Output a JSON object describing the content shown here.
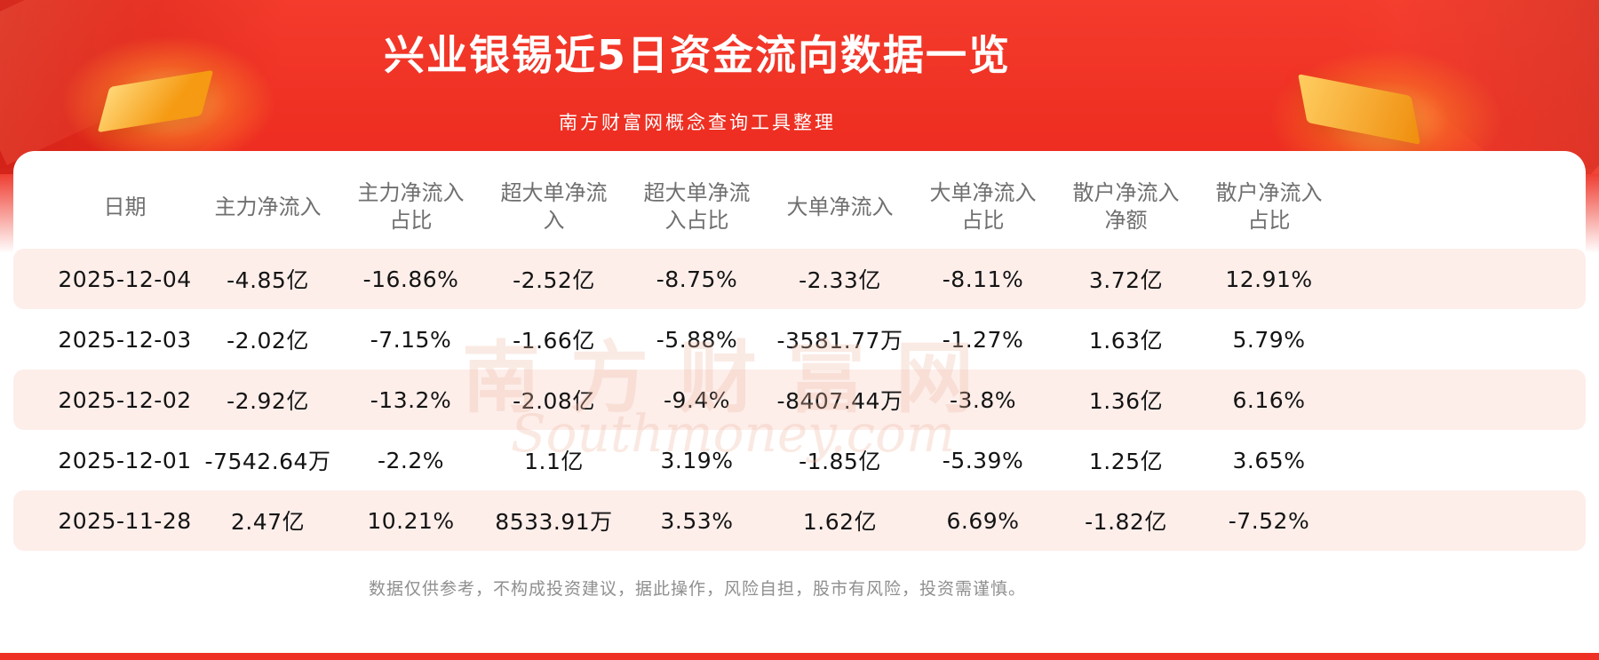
{
  "banner": {
    "title": "兴业银锡近5日资金流向数据一览",
    "subtitle": "南方财富网概念查询工具整理"
  },
  "chart_data": {
    "type": "table",
    "title": "兴业银锡近5日资金流向数据一览",
    "columns": [
      "日期",
      "主力净流入",
      "主力净流入占比",
      "超大单净流入",
      "超大单净流入占比",
      "大单净流入",
      "大单净流入占比",
      "散户净流入净额",
      "散户净流入占比"
    ],
    "rows": [
      [
        "2025-12-04",
        "-4.85亿",
        "-16.86%",
        "-2.52亿",
        "-8.75%",
        "-2.33亿",
        "-8.11%",
        "3.72亿",
        "12.91%"
      ],
      [
        "2025-12-03",
        "-2.02亿",
        "-7.15%",
        "-1.66亿",
        "-5.88%",
        "-3581.77万",
        "-1.27%",
        "1.63亿",
        "5.79%"
      ],
      [
        "2025-12-02",
        "-2.92亿",
        "-13.2%",
        "-2.08亿",
        "-9.4%",
        "-8407.44万",
        "-3.8%",
        "1.36亿",
        "6.16%"
      ],
      [
        "2025-12-01",
        "-7542.64万",
        "-2.2%",
        "1.1亿",
        "3.19%",
        "-1.85亿",
        "-5.39%",
        "1.25亿",
        "3.65%"
      ],
      [
        "2025-11-28",
        "2.47亿",
        "10.21%",
        "8533.91万",
        "3.53%",
        "1.62亿",
        "6.69%",
        "-1.82亿",
        "-7.52%"
      ]
    ]
  },
  "watermark": {
    "cn": "南方财富网",
    "en": "Southmoney.com"
  },
  "footer": {
    "disclaimer": "数据仅供参考，不构成投资建议，据此操作，风险自担，股市有风险，投资需谨慎。"
  },
  "colors": {
    "banner_red": "#ef3124",
    "gold_accent": "#f59a12",
    "row_alt_pink": "#fdeeea",
    "header_text": "#6f6f6f",
    "cell_text": "#141414",
    "footer_text": "#8f8f8f"
  }
}
